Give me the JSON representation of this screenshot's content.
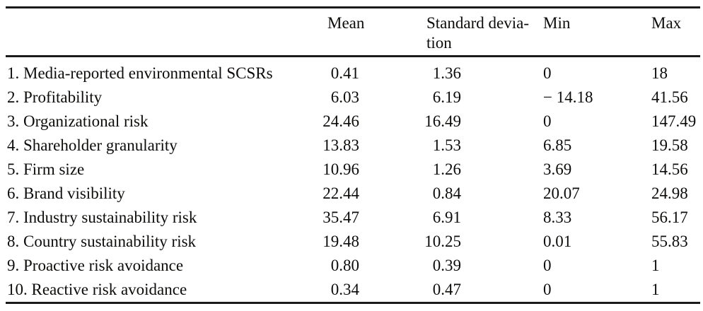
{
  "style": {
    "background": "#ffffff",
    "text_color": "#0d0c0a",
    "rule_color": "#1b1b1b"
  },
  "table": {
    "headers": {
      "variable": "",
      "mean": "Mean",
      "sd_line1": "Standard devia-",
      "sd_line2": "tion",
      "min": "Min",
      "max": "Max"
    },
    "rows": [
      {
        "label": "1. Media-reported environmental SCSRs",
        "mean": "0.41",
        "sd": "1.36",
        "min": "0",
        "max": "18"
      },
      {
        "label": "2. Profitability",
        "mean": "6.03",
        "sd": "6.19",
        "min": "− 14.18",
        "max": "41.56"
      },
      {
        "label": "3. Organizational risk",
        "mean": "24.46",
        "sd": "16.49",
        "min": "0",
        "max": "147.49"
      },
      {
        "label": "4. Shareholder granularity",
        "mean": "13.83",
        "sd": "1.53",
        "min": "6.85",
        "max": "19.58"
      },
      {
        "label": "5. Firm size",
        "mean": "10.96",
        "sd": "1.26",
        "min": "3.69",
        "max": "14.56"
      },
      {
        "label": "6. Brand visibility",
        "mean": "22.44",
        "sd": "0.84",
        "min": "20.07",
        "max": "24.98"
      },
      {
        "label": "7. Industry sustainability risk",
        "mean": "35.47",
        "sd": "6.91",
        "min": "8.33",
        "max": "56.17"
      },
      {
        "label": "8. Country sustainability risk",
        "mean": "19.48",
        "sd": "10.25",
        "min": "0.01",
        "max": "55.83"
      },
      {
        "label": "9. Proactive risk avoidance",
        "mean": "0.80",
        "sd": "0.39",
        "min": "0",
        "max": "1"
      },
      {
        "label": "10. Reactive risk avoidance",
        "mean": "0.34",
        "sd": "0.47",
        "min": "0",
        "max": "1"
      }
    ]
  }
}
